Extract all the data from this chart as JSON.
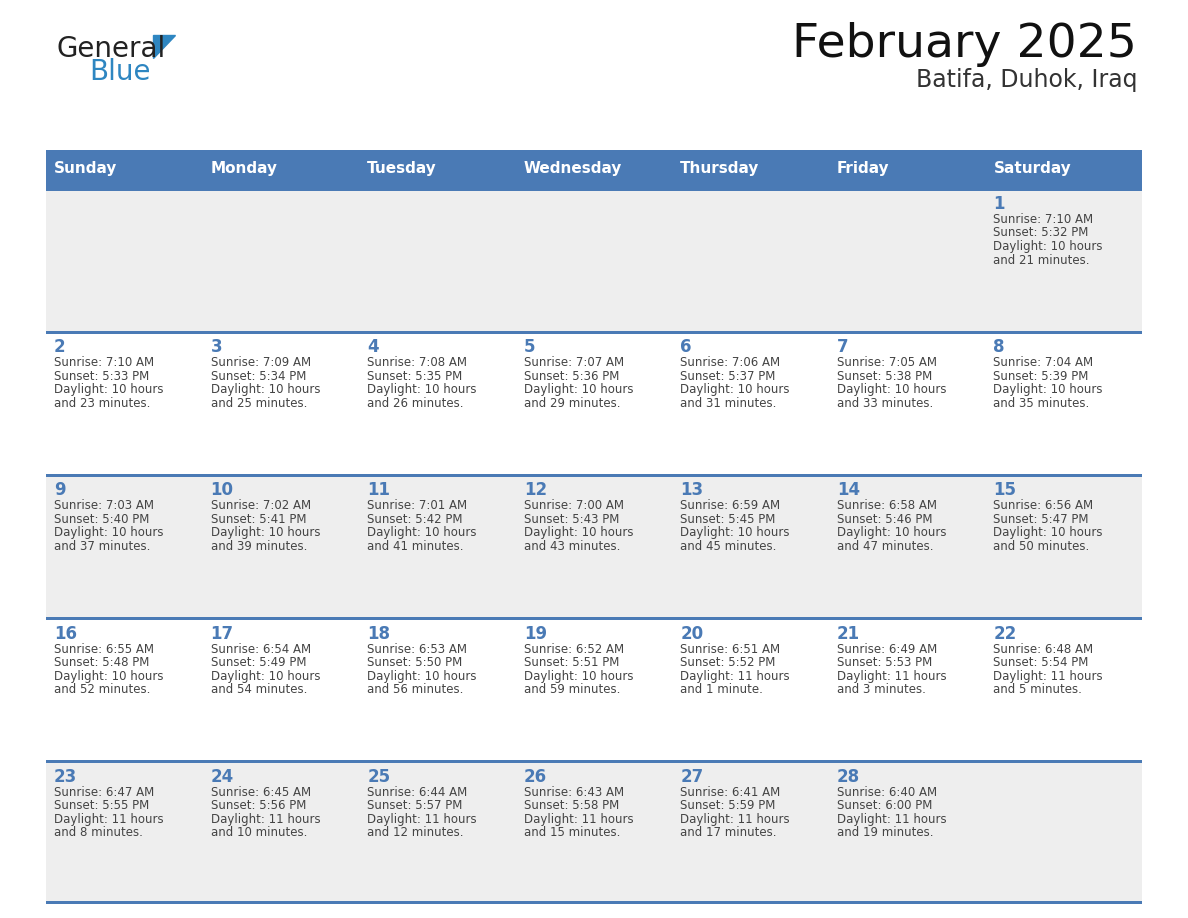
{
  "title": "February 2025",
  "subtitle": "Batifa, Duhok, Iraq",
  "days_of_week": [
    "Sunday",
    "Monday",
    "Tuesday",
    "Wednesday",
    "Thursday",
    "Friday",
    "Saturday"
  ],
  "header_bg": "#4a7ab5",
  "header_text_color": "#ffffff",
  "row_bg_colors": [
    "#eeeeee",
    "#ffffff",
    "#eeeeee",
    "#ffffff",
    "#eeeeee"
  ],
  "day_number_color": "#4a7ab5",
  "text_color": "#444444",
  "line_color": "#4a7ab5",
  "title_color": "#111111",
  "subtitle_color": "#333333",
  "logo_text1_color": "#222222",
  "logo_text2_color": "#2e86c1",
  "logo_triangle_color": "#2e86c1",
  "calendar_data": [
    [
      null,
      null,
      null,
      null,
      null,
      null,
      {
        "day": 1,
        "sunrise": "7:10 AM",
        "sunset": "5:32 PM",
        "daylight": "10 hours",
        "and_part": "and 21 minutes."
      }
    ],
    [
      {
        "day": 2,
        "sunrise": "7:10 AM",
        "sunset": "5:33 PM",
        "daylight": "10 hours",
        "and_part": "and 23 minutes."
      },
      {
        "day": 3,
        "sunrise": "7:09 AM",
        "sunset": "5:34 PM",
        "daylight": "10 hours",
        "and_part": "and 25 minutes."
      },
      {
        "day": 4,
        "sunrise": "7:08 AM",
        "sunset": "5:35 PM",
        "daylight": "10 hours",
        "and_part": "and 26 minutes."
      },
      {
        "day": 5,
        "sunrise": "7:07 AM",
        "sunset": "5:36 PM",
        "daylight": "10 hours",
        "and_part": "and 29 minutes."
      },
      {
        "day": 6,
        "sunrise": "7:06 AM",
        "sunset": "5:37 PM",
        "daylight": "10 hours",
        "and_part": "and 31 minutes."
      },
      {
        "day": 7,
        "sunrise": "7:05 AM",
        "sunset": "5:38 PM",
        "daylight": "10 hours",
        "and_part": "and 33 minutes."
      },
      {
        "day": 8,
        "sunrise": "7:04 AM",
        "sunset": "5:39 PM",
        "daylight": "10 hours",
        "and_part": "and 35 minutes."
      }
    ],
    [
      {
        "day": 9,
        "sunrise": "7:03 AM",
        "sunset": "5:40 PM",
        "daylight": "10 hours",
        "and_part": "and 37 minutes."
      },
      {
        "day": 10,
        "sunrise": "7:02 AM",
        "sunset": "5:41 PM",
        "daylight": "10 hours",
        "and_part": "and 39 minutes."
      },
      {
        "day": 11,
        "sunrise": "7:01 AM",
        "sunset": "5:42 PM",
        "daylight": "10 hours",
        "and_part": "and 41 minutes."
      },
      {
        "day": 12,
        "sunrise": "7:00 AM",
        "sunset": "5:43 PM",
        "daylight": "10 hours",
        "and_part": "and 43 minutes."
      },
      {
        "day": 13,
        "sunrise": "6:59 AM",
        "sunset": "5:45 PM",
        "daylight": "10 hours",
        "and_part": "and 45 minutes."
      },
      {
        "day": 14,
        "sunrise": "6:58 AM",
        "sunset": "5:46 PM",
        "daylight": "10 hours",
        "and_part": "and 47 minutes."
      },
      {
        "day": 15,
        "sunrise": "6:56 AM",
        "sunset": "5:47 PM",
        "daylight": "10 hours",
        "and_part": "and 50 minutes."
      }
    ],
    [
      {
        "day": 16,
        "sunrise": "6:55 AM",
        "sunset": "5:48 PM",
        "daylight": "10 hours",
        "and_part": "and 52 minutes."
      },
      {
        "day": 17,
        "sunrise": "6:54 AM",
        "sunset": "5:49 PM",
        "daylight": "10 hours",
        "and_part": "and 54 minutes."
      },
      {
        "day": 18,
        "sunrise": "6:53 AM",
        "sunset": "5:50 PM",
        "daylight": "10 hours",
        "and_part": "and 56 minutes."
      },
      {
        "day": 19,
        "sunrise": "6:52 AM",
        "sunset": "5:51 PM",
        "daylight": "10 hours",
        "and_part": "and 59 minutes."
      },
      {
        "day": 20,
        "sunrise": "6:51 AM",
        "sunset": "5:52 PM",
        "daylight": "11 hours",
        "and_part": "and 1 minute."
      },
      {
        "day": 21,
        "sunrise": "6:49 AM",
        "sunset": "5:53 PM",
        "daylight": "11 hours",
        "and_part": "and 3 minutes."
      },
      {
        "day": 22,
        "sunrise": "6:48 AM",
        "sunset": "5:54 PM",
        "daylight": "11 hours",
        "and_part": "and 5 minutes."
      }
    ],
    [
      {
        "day": 23,
        "sunrise": "6:47 AM",
        "sunset": "5:55 PM",
        "daylight": "11 hours",
        "and_part": "and 8 minutes."
      },
      {
        "day": 24,
        "sunrise": "6:45 AM",
        "sunset": "5:56 PM",
        "daylight": "11 hours",
        "and_part": "and 10 minutes."
      },
      {
        "day": 25,
        "sunrise": "6:44 AM",
        "sunset": "5:57 PM",
        "daylight": "11 hours",
        "and_part": "and 12 minutes."
      },
      {
        "day": 26,
        "sunrise": "6:43 AM",
        "sunset": "5:58 PM",
        "daylight": "11 hours",
        "and_part": "and 15 minutes."
      },
      {
        "day": 27,
        "sunrise": "6:41 AM",
        "sunset": "5:59 PM",
        "daylight": "11 hours",
        "and_part": "and 17 minutes."
      },
      {
        "day": 28,
        "sunrise": "6:40 AM",
        "sunset": "6:00 PM",
        "daylight": "11 hours",
        "and_part": "and 19 minutes."
      },
      null
    ]
  ]
}
